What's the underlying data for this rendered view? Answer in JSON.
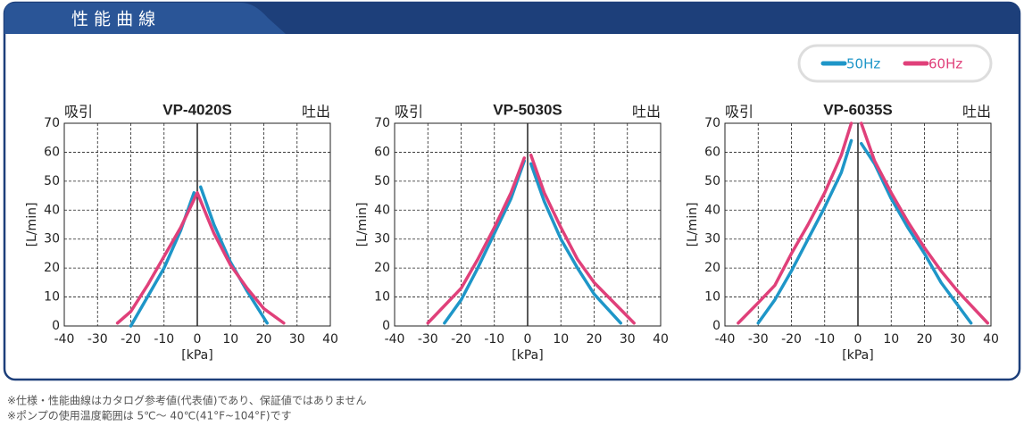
{
  "header": {
    "title": "性 能 曲 線"
  },
  "legend": [
    {
      "name": "50Hz",
      "color": "#1e96c8"
    },
    {
      "name": "60Hz",
      "color": "#e0407a"
    }
  ],
  "chart_data": [
    {
      "type": "line",
      "title": "VP-4020S",
      "left_label": "吸引",
      "right_label": "吐出",
      "xlabel": "[kPa]",
      "ylabel": "[L/min]",
      "xlim": [
        -40,
        40
      ],
      "xticks": [
        -40,
        -30,
        -20,
        -10,
        0,
        10,
        20,
        30,
        40
      ],
      "ylim": [
        0,
        70
      ],
      "yticks": [
        0,
        10,
        20,
        30,
        40,
        50,
        60,
        70
      ],
      "grid": true,
      "series": [
        {
          "color": "#1e96c8",
          "x": [
            -20,
            -15,
            -10,
            -5,
            -1,
            null,
            1,
            5,
            10,
            15,
            21
          ],
          "values": [
            0,
            10,
            20,
            33,
            46,
            null,
            48,
            35,
            22,
            12,
            1
          ]
        },
        {
          "color": "#e0407a",
          "x": [
            -24,
            -20,
            -15,
            -10,
            -5,
            0,
            null,
            0,
            5,
            10,
            15,
            20,
            26
          ],
          "values": [
            1,
            5,
            14,
            24,
            34,
            46,
            null,
            46,
            32,
            21,
            13,
            6,
            1
          ]
        }
      ]
    },
    {
      "type": "line",
      "title": "VP-5030S",
      "left_label": "吸引",
      "right_label": "吐出",
      "xlabel": "[kPa]",
      "ylabel": "[L/min]",
      "xlim": [
        -40,
        40
      ],
      "xticks": [
        -40,
        -30,
        -20,
        -10,
        0,
        10,
        20,
        30,
        40
      ],
      "ylim": [
        0,
        70
      ],
      "yticks": [
        0,
        10,
        20,
        30,
        40,
        50,
        60,
        70
      ],
      "grid": true,
      "series": [
        {
          "color": "#1e96c8",
          "x": [
            -25,
            -20,
            -15,
            -10,
            -5,
            -1,
            null,
            1,
            5,
            10,
            15,
            20,
            28
          ],
          "values": [
            1,
            9,
            20,
            32,
            44,
            57,
            null,
            56,
            43,
            30,
            20,
            11,
            1
          ]
        },
        {
          "color": "#e0407a",
          "x": [
            -30,
            -20,
            -15,
            -10,
            -5,
            -1,
            null,
            1,
            5,
            10,
            15,
            20,
            32
          ],
          "values": [
            1,
            13,
            23,
            34,
            46,
            58,
            null,
            59,
            46,
            34,
            23,
            15,
            1
          ]
        }
      ]
    },
    {
      "type": "line",
      "title": "VP-6035S",
      "left_label": "吸引",
      "right_label": "吐出",
      "xlabel": "[kPa]",
      "ylabel": "[L/min]",
      "xlim": [
        -40,
        40
      ],
      "xticks": [
        -40,
        -30,
        -20,
        -10,
        0,
        10,
        20,
        30,
        40
      ],
      "ylim": [
        0,
        70
      ],
      "yticks": [
        0,
        10,
        20,
        30,
        40,
        50,
        60,
        70
      ],
      "grid": true,
      "series": [
        {
          "color": "#1e96c8",
          "x": [
            -30,
            -25,
            -20,
            -15,
            -10,
            -5,
            -2,
            null,
            1,
            5,
            10,
            15,
            20,
            25,
            34
          ],
          "values": [
            1,
            9,
            19,
            30,
            41,
            53,
            64,
            null,
            63,
            56,
            44,
            34,
            25,
            15,
            1
          ]
        },
        {
          "color": "#e0407a",
          "x": [
            -36,
            -30,
            -25,
            -20,
            -15,
            -10,
            -5,
            -2,
            null,
            1,
            5,
            10,
            15,
            20,
            25,
            30,
            39
          ],
          "values": [
            1,
            8,
            14,
            25,
            35,
            46,
            59,
            70,
            null,
            70,
            57,
            46,
            36,
            27,
            19,
            12,
            1
          ]
        }
      ]
    }
  ],
  "notes": [
    "※仕様・性能曲線はカタログ参考値(代表値)であり、保証値ではありません",
    "※ポンプの使用温度範囲は 5℃～ 40℃(41°F~104°F)です"
  ]
}
